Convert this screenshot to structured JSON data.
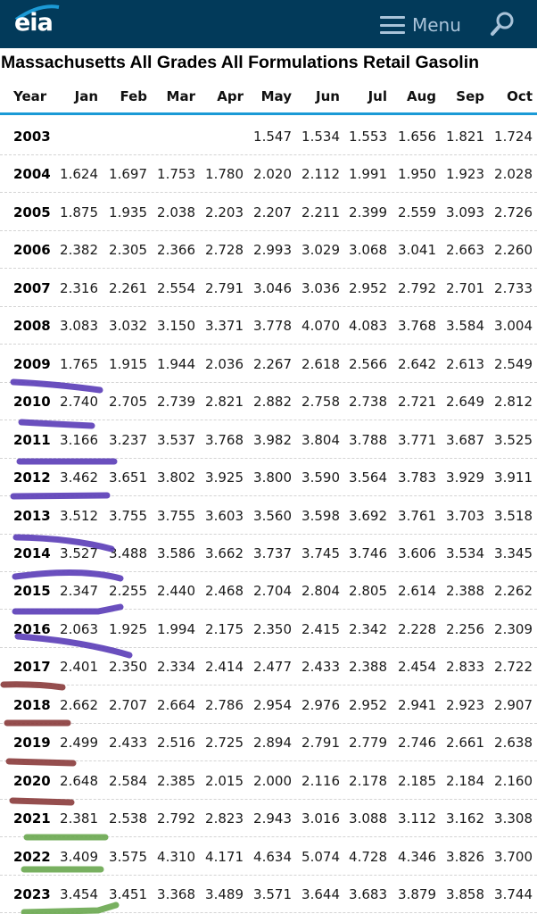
{
  "header": {
    "logo": "eia",
    "menu_label": "Menu",
    "icons": {
      "menu": "hamburger-icon",
      "search": "search-icon"
    },
    "color": "#023a5a"
  },
  "title": "Massachusetts All Grades All Formulations Retail Gasolin",
  "table": {
    "columns": [
      "Year",
      "Jan",
      "Feb",
      "Mar",
      "Apr",
      "May",
      "Jun",
      "Jul",
      "Aug",
      "Sep",
      "Oct"
    ],
    "rows": [
      {
        "year": "2003",
        "values": [
          "",
          "",
          "",
          "",
          "1.547",
          "1.534",
          "1.553",
          "1.656",
          "1.821",
          "1.724"
        ]
      },
      {
        "year": "2004",
        "values": [
          "1.624",
          "1.697",
          "1.753",
          "1.780",
          "2.020",
          "2.112",
          "1.991",
          "1.950",
          "1.923",
          "2.028"
        ]
      },
      {
        "year": "2005",
        "values": [
          "1.875",
          "1.935",
          "2.038",
          "2.203",
          "2.207",
          "2.211",
          "2.399",
          "2.559",
          "3.093",
          "2.726"
        ]
      },
      {
        "year": "2006",
        "values": [
          "2.382",
          "2.305",
          "2.366",
          "2.728",
          "2.993",
          "3.029",
          "3.068",
          "3.041",
          "2.663",
          "2.260"
        ]
      },
      {
        "year": "2007",
        "values": [
          "2.316",
          "2.261",
          "2.554",
          "2.791",
          "3.046",
          "3.036",
          "2.952",
          "2.792",
          "2.701",
          "2.733"
        ]
      },
      {
        "year": "2008",
        "values": [
          "3.083",
          "3.032",
          "3.150",
          "3.371",
          "3.778",
          "4.070",
          "4.083",
          "3.768",
          "3.584",
          "3.004"
        ]
      },
      {
        "year": "2009",
        "values": [
          "1.765",
          "1.915",
          "1.944",
          "2.036",
          "2.267",
          "2.618",
          "2.566",
          "2.642",
          "2.613",
          "2.549"
        ]
      },
      {
        "year": "2010",
        "values": [
          "2.740",
          "2.705",
          "2.739",
          "2.821",
          "2.882",
          "2.758",
          "2.738",
          "2.721",
          "2.649",
          "2.812"
        ]
      },
      {
        "year": "2011",
        "values": [
          "3.166",
          "3.237",
          "3.537",
          "3.768",
          "3.982",
          "3.804",
          "3.788",
          "3.771",
          "3.687",
          "3.525"
        ]
      },
      {
        "year": "2012",
        "values": [
          "3.462",
          "3.651",
          "3.802",
          "3.925",
          "3.800",
          "3.590",
          "3.564",
          "3.783",
          "3.929",
          "3.911"
        ]
      },
      {
        "year": "2013",
        "values": [
          "3.512",
          "3.755",
          "3.755",
          "3.603",
          "3.560",
          "3.598",
          "3.692",
          "3.761",
          "3.703",
          "3.518"
        ]
      },
      {
        "year": "2014",
        "values": [
          "3.527",
          "3.488",
          "3.586",
          "3.662",
          "3.737",
          "3.745",
          "3.746",
          "3.606",
          "3.534",
          "3.345"
        ]
      },
      {
        "year": "2015",
        "values": [
          "2.347",
          "2.255",
          "2.440",
          "2.468",
          "2.704",
          "2.804",
          "2.805",
          "2.614",
          "2.388",
          "2.262"
        ]
      },
      {
        "year": "2016",
        "values": [
          "2.063",
          "1.925",
          "1.994",
          "2.175",
          "2.350",
          "2.415",
          "2.342",
          "2.228",
          "2.256",
          "2.309"
        ]
      },
      {
        "year": "2017",
        "values": [
          "2.401",
          "2.350",
          "2.334",
          "2.414",
          "2.477",
          "2.433",
          "2.388",
          "2.454",
          "2.833",
          "2.722"
        ]
      },
      {
        "year": "2018",
        "values": [
          "2.662",
          "2.707",
          "2.664",
          "2.786",
          "2.954",
          "2.976",
          "2.952",
          "2.941",
          "2.923",
          "2.907"
        ]
      },
      {
        "year": "2019",
        "values": [
          "2.499",
          "2.433",
          "2.516",
          "2.725",
          "2.894",
          "2.791",
          "2.779",
          "2.746",
          "2.661",
          "2.638"
        ]
      },
      {
        "year": "2020",
        "values": [
          "2.648",
          "2.584",
          "2.385",
          "2.015",
          "2.000",
          "2.116",
          "2.178",
          "2.185",
          "2.184",
          "2.160"
        ]
      },
      {
        "year": "2021",
        "values": [
          "2.381",
          "2.538",
          "2.792",
          "2.823",
          "2.943",
          "3.016",
          "3.088",
          "3.112",
          "3.162",
          "3.308"
        ]
      },
      {
        "year": "2022",
        "values": [
          "3.409",
          "3.575",
          "4.310",
          "4.171",
          "4.634",
          "5.074",
          "4.728",
          "4.346",
          "3.826",
          "3.700"
        ]
      },
      {
        "year": "2023",
        "values": [
          "3.454",
          "3.451",
          "3.368",
          "3.489",
          "3.571",
          "3.644",
          "3.683",
          "3.879",
          "3.858",
          "3.744"
        ]
      }
    ]
  },
  "highlight_colors": {
    "purple": "#5a3db8",
    "brown": "#8a3b3b",
    "green": "#6aa84f"
  },
  "accent": "#1b9ad6"
}
